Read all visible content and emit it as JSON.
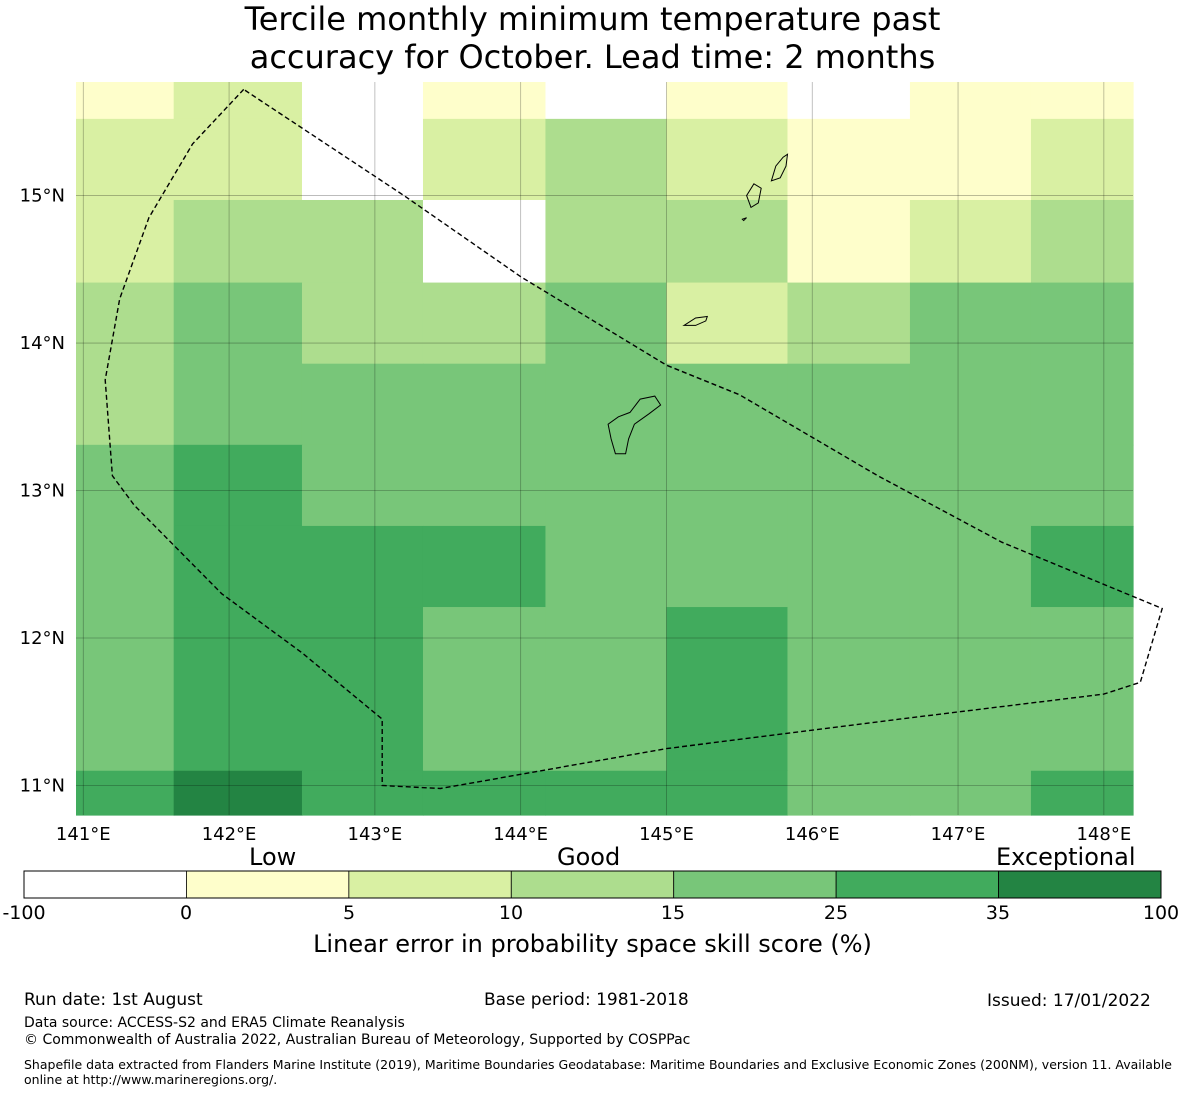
{
  "title": {
    "line1": "Tercile monthly minimum temperature past",
    "line2": "accuracy for October. Lead time: 2 months"
  },
  "map": {
    "lon_range": [
      140.95,
      148.2
    ],
    "lat_range": [
      10.8,
      15.77
    ],
    "lon_ticks": [
      {
        "value": 141,
        "label": "141°E"
      },
      {
        "value": 142,
        "label": "142°E"
      },
      {
        "value": 143,
        "label": "143°E"
      },
      {
        "value": 144,
        "label": "144°E"
      },
      {
        "value": 145,
        "label": "145°E"
      },
      {
        "value": 146,
        "label": "146°E"
      },
      {
        "value": 147,
        "label": "147°E"
      },
      {
        "value": 148,
        "label": "148°E"
      }
    ],
    "lat_ticks": [
      {
        "value": 15,
        "label": "15°N"
      },
      {
        "value": 14,
        "label": "14°N"
      },
      {
        "value": 13,
        "label": "13°N"
      },
      {
        "value": 12,
        "label": "12°N"
      },
      {
        "value": 11,
        "label": "11°N"
      }
    ],
    "grid_lines": true,
    "grid_lons": [
      140.95,
      141.62,
      142.5,
      143.33,
      144.17,
      145.0,
      145.83,
      146.67,
      147.5,
      148.2
    ],
    "grid_lats": [
      15.77,
      15.52,
      14.97,
      14.41,
      13.86,
      13.31,
      12.76,
      12.21,
      11.1,
      10.8
    ],
    "class_colors": [
      "#ffffff",
      "#fefecb",
      "#d9f0a3",
      "#addd8e",
      "#78c679",
      "#41ab5d",
      "#238443"
    ],
    "cell_classes": [
      [
        1,
        2,
        0,
        1,
        0,
        1,
        0,
        1,
        1
      ],
      [
        2,
        2,
        0,
        2,
        3,
        2,
        1,
        1,
        2
      ],
      [
        2,
        3,
        3,
        0,
        3,
        3,
        1,
        2,
        3
      ],
      [
        3,
        4,
        3,
        3,
        4,
        2,
        3,
        4,
        4
      ],
      [
        3,
        4,
        4,
        4,
        4,
        4,
        4,
        4,
        4
      ],
      [
        4,
        5,
        4,
        4,
        4,
        4,
        4,
        4,
        4
      ],
      [
        4,
        5,
        5,
        5,
        4,
        4,
        4,
        4,
        5
      ],
      [
        4,
        5,
        5,
        4,
        4,
        5,
        4,
        4,
        4
      ],
      [
        5,
        6,
        5,
        5,
        5,
        5,
        4,
        4,
        5
      ]
    ],
    "eez_boundary": [
      [
        142.1,
        15.72
      ],
      [
        141.75,
        15.35
      ],
      [
        141.45,
        14.85
      ],
      [
        141.25,
        14.3
      ],
      [
        141.15,
        13.75
      ],
      [
        141.2,
        13.1
      ],
      [
        141.35,
        12.9
      ],
      [
        141.95,
        12.3
      ],
      [
        142.5,
        11.9
      ],
      [
        143.05,
        11.45
      ],
      [
        143.05,
        11.0
      ],
      [
        143.45,
        10.98
      ],
      [
        145.0,
        11.25
      ],
      [
        146.6,
        11.45
      ],
      [
        148.0,
        11.62
      ],
      [
        148.25,
        11.7
      ],
      [
        148.4,
        12.2
      ],
      [
        147.3,
        12.65
      ],
      [
        146.45,
        13.1
      ],
      [
        145.5,
        13.65
      ],
      [
        145.0,
        13.85
      ],
      [
        144.0,
        14.45
      ],
      [
        143.2,
        15.0
      ],
      [
        142.1,
        15.72
      ]
    ],
    "islands": [
      [
        [
          144.65,
          13.25
        ],
        [
          144.62,
          13.35
        ],
        [
          144.6,
          13.45
        ],
        [
          144.67,
          13.5
        ],
        [
          144.75,
          13.53
        ],
        [
          144.82,
          13.62
        ],
        [
          144.92,
          13.64
        ],
        [
          144.96,
          13.58
        ],
        [
          144.88,
          13.52
        ],
        [
          144.78,
          13.45
        ],
        [
          144.74,
          13.35
        ],
        [
          144.72,
          13.25
        ]
      ],
      [
        [
          145.12,
          14.12
        ],
        [
          145.2,
          14.17
        ],
        [
          145.28,
          14.18
        ],
        [
          145.27,
          14.15
        ],
        [
          145.2,
          14.12
        ]
      ],
      [
        [
          145.58,
          14.92
        ],
        [
          145.55,
          15.0
        ],
        [
          145.6,
          15.08
        ],
        [
          145.65,
          15.05
        ],
        [
          145.63,
          14.95
        ]
      ],
      [
        [
          145.52,
          14.84
        ],
        [
          145.55,
          14.85
        ],
        [
          145.53,
          14.83
        ]
      ],
      [
        [
          145.72,
          15.1
        ],
        [
          145.75,
          15.2
        ],
        [
          145.8,
          15.26
        ],
        [
          145.83,
          15.28
        ],
        [
          145.82,
          15.2
        ],
        [
          145.78,
          15.12
        ]
      ]
    ]
  },
  "colorbar": {
    "category_labels": [
      "Low",
      "Good",
      "Exceptional"
    ],
    "tick_labels": [
      "-100",
      "0",
      "5",
      "10",
      "15",
      "25",
      "35",
      "100"
    ],
    "colors": [
      "#ffffff",
      "#fefecb",
      "#d9f0a3",
      "#addd8e",
      "#78c679",
      "#41ab5d",
      "#238443"
    ],
    "title": "Linear error in probability space skill score (%)"
  },
  "footer": {
    "run_date": "Run date: 1st August",
    "base_period": "Base period: 1981-2018",
    "issued": "Issued: 17/01/2022",
    "data_source": "Data source: ACCESS-S2 and ERA5 Climate Reanalysis",
    "copyright": "© Commonwealth of Australia 2022, Australian Bureau of Meteorology, Supported by COSPPac",
    "shapefile": "Shapefile data extracted from Flanders Marine Institute (2019), Maritime Boundaries Geodatabase: Maritime Boundaries and Exclusive Economic Zones (200NM), version 11. Available online at http://www.marineregions.org/."
  }
}
